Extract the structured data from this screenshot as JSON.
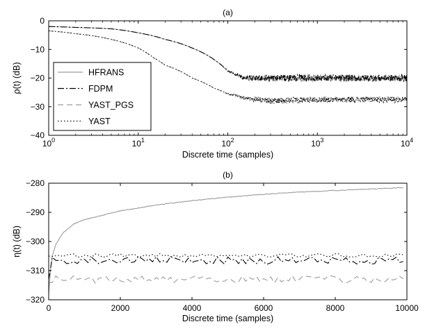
{
  "chart_data": [
    {
      "type": "line",
      "panel_label": "(a)",
      "xlabel": "Discrete time (samples)",
      "ylabel": "ρ(t) (dB)",
      "xscale": "log",
      "xlim": [
        1,
        10000
      ],
      "ylim": [
        -40,
        0
      ],
      "x_ticks": [
        {
          "value": 1,
          "base": "10",
          "exp": "0"
        },
        {
          "value": 10,
          "base": "10",
          "exp": "1"
        },
        {
          "value": 100,
          "base": "10",
          "exp": "2"
        },
        {
          "value": 1000,
          "base": "10",
          "exp": "3"
        },
        {
          "value": 10000,
          "base": "10",
          "exp": "4"
        }
      ],
      "y_ticks": [
        {
          "value": 0,
          "label": "0"
        },
        {
          "value": -10,
          "label": "−10"
        },
        {
          "value": -20,
          "label": "−20"
        },
        {
          "value": -30,
          "label": "−30"
        },
        {
          "value": -40,
          "label": "−40"
        }
      ],
      "legend_position": "center-left",
      "series": [
        {
          "name": "HFRANS",
          "style": "solid",
          "color": "#9a9a9a",
          "x": [
            1,
            2,
            5,
            10,
            20,
            40,
            70,
            100,
            150,
            300,
            1000,
            3000,
            10000
          ],
          "y": [
            -2,
            -2.3,
            -2.8,
            -4.2,
            -6.5,
            -9.5,
            -13.5,
            -17.5,
            -20,
            -20,
            -20,
            -20,
            -20
          ],
          "noise": 1.2
        },
        {
          "name": "FDPM",
          "style": "dashdot",
          "color": "#000000",
          "x": [
            1,
            2,
            5,
            10,
            20,
            40,
            70,
            100,
            150,
            300,
            1000,
            3000,
            10000
          ],
          "y": [
            -2,
            -2.3,
            -2.8,
            -4.2,
            -6.5,
            -9.5,
            -13.5,
            -17.5,
            -20,
            -20,
            -20,
            -20,
            -20
          ],
          "noise": 1.2
        },
        {
          "name": "YAST_PGS",
          "style": "dashed",
          "color": "#9a9a9a",
          "x": [
            1,
            2,
            5,
            10,
            15,
            20,
            40,
            70,
            100,
            150,
            300,
            1000,
            3000,
            10000
          ],
          "y": [
            -3.5,
            -4.5,
            -6.5,
            -9.5,
            -13,
            -15.5,
            -20,
            -23.5,
            -25.5,
            -27,
            -28,
            -27.5,
            -27.5,
            -27.5
          ],
          "noise": 1.0
        },
        {
          "name": "YAST",
          "style": "dotted",
          "color": "#000000",
          "x": [
            1,
            2,
            5,
            10,
            15,
            20,
            40,
            70,
            100,
            150,
            300,
            1000,
            3000,
            10000
          ],
          "y": [
            -3.5,
            -4.5,
            -6.5,
            -9.5,
            -13,
            -15.5,
            -20,
            -23.5,
            -25.5,
            -27,
            -28,
            -27.5,
            -27.5,
            -27.5
          ],
          "noise": 1.0
        }
      ]
    },
    {
      "type": "line",
      "panel_label": "(b)",
      "xlabel": "Discrete time (samples)",
      "ylabel": "η(t) (dB)",
      "xscale": "linear",
      "xlim": [
        0,
        10000
      ],
      "ylim": [
        -320,
        -280
      ],
      "x_ticks": [
        {
          "value": 0,
          "label": "0"
        },
        {
          "value": 2000,
          "label": "2000"
        },
        {
          "value": 4000,
          "label": "4000"
        },
        {
          "value": 6000,
          "label": "6000"
        },
        {
          "value": 8000,
          "label": "8000"
        },
        {
          "value": 10000,
          "label": "10000"
        }
      ],
      "y_ticks": [
        {
          "value": -280,
          "label": "−280"
        },
        {
          "value": -290,
          "label": "−290"
        },
        {
          "value": -300,
          "label": "−300"
        },
        {
          "value": -310,
          "label": "−310"
        },
        {
          "value": -320,
          "label": "−320"
        }
      ],
      "series": [
        {
          "name": "HFRANS",
          "style": "solid",
          "color": "#9a9a9a",
          "x": [
            0,
            50,
            100,
            200,
            400,
            700,
            1000,
            1500,
            2000,
            3000,
            4000,
            5000,
            6000,
            7000,
            8000,
            9000,
            9900
          ],
          "y": [
            -318,
            -310,
            -305,
            -301,
            -297,
            -294,
            -292.5,
            -291,
            -289.5,
            -287.5,
            -286,
            -284.8,
            -283.8,
            -283,
            -282.5,
            -282,
            -281.5
          ]
        },
        {
          "name": "FDPM",
          "style": "dashdot",
          "color": "#000000",
          "x": [
            0,
            100,
            9900
          ],
          "y": [
            -313,
            -306.5,
            -306.5
          ],
          "wiggle": 1.3
        },
        {
          "name": "YAST_PGS",
          "style": "dashed",
          "color": "#9a9a9a",
          "x": [
            0,
            100,
            9900
          ],
          "y": [
            -314,
            -313,
            -313
          ],
          "wiggle": 1.3
        },
        {
          "name": "YAST",
          "style": "dotted",
          "color": "#000000",
          "x": [
            0,
            100,
            9900
          ],
          "y": [
            -305,
            -304.8,
            -304.8
          ],
          "wiggle": 0.6
        }
      ]
    }
  ]
}
